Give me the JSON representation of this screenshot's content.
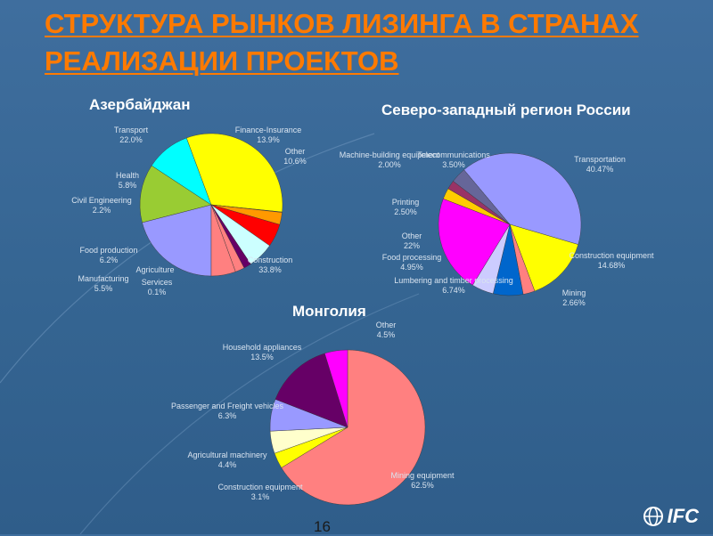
{
  "slide": {
    "title": "СТРУКТУРА РЫНКОВ ЛИЗИНГА В СТРАНАХ РЕАЛИЗАЦИИ ПРОЕКТОВ",
    "page_number": "16",
    "logo_text": "IFC"
  },
  "colors": {
    "title": "#ff7a00",
    "background": "#3a6a98",
    "label_text": "#d9e4f0"
  },
  "chart_data": [
    {
      "type": "pie",
      "title": "Азербайджан",
      "series": [
        {
          "label": "Transport",
          "value_text": "22.0%",
          "value": 22.0,
          "color": "#9999ff"
        },
        {
          "label": "Finance-Insurance",
          "value_text": "13.9%",
          "value": 13.9,
          "color": "#99cc33"
        },
        {
          "label": "Other",
          "value_text": "10.6%",
          "value": 10.6,
          "color": "#00ffff"
        },
        {
          "label": "Construction",
          "value_text": "33.8%",
          "value": 33.8,
          "color": "#ffff00"
        },
        {
          "label": "Services",
          "value_text": "0.1%",
          "value": 0.1,
          "color": "#cc99ff"
        },
        {
          "label": "Agriculture",
          "value_text": "",
          "value": 2.9,
          "color": "#ff9900"
        },
        {
          "label": "Manufacturing",
          "value_text": "5.5%",
          "value": 5.5,
          "color": "#ff0000"
        },
        {
          "label": "Food production",
          "value_text": "6.2%",
          "value": 6.2,
          "color": "#ccffff"
        },
        {
          "label": "",
          "value_text": "",
          "value": 1.8,
          "color": "#660066"
        },
        {
          "label": "Civil Engineering",
          "value_text": "2.2%",
          "value": 2.2,
          "color": "#ff8080"
        },
        {
          "label": "Health",
          "value_text": "5.8%",
          "value": 5.8,
          "color": "#ff8080"
        }
      ]
    },
    {
      "type": "pie",
      "title": "Северо-западный регион России",
      "series": [
        {
          "label": "Transportation",
          "value_text": "40.47%",
          "value": 40.47,
          "color": "#9999ff"
        },
        {
          "label": "Construction equipment",
          "value_text": "14.68%",
          "value": 14.68,
          "color": "#ffff00"
        },
        {
          "label": "Mining",
          "value_text": "2.66%",
          "value": 2.66,
          "color": "#ff8080"
        },
        {
          "label": "Lumbering and timber processing",
          "value_text": "6.74%",
          "value": 6.74,
          "color": "#0066cc"
        },
        {
          "label": "Food processing",
          "value_text": "4.95%",
          "value": 4.95,
          "color": "#ccccff"
        },
        {
          "label": "Other",
          "value_text": "22%",
          "value": 22.0,
          "color": "#ff00ff"
        },
        {
          "label": "Printing",
          "value_text": "2.50%",
          "value": 2.5,
          "color": "#ffcc00"
        },
        {
          "label": "Machine-building equipment",
          "value_text": "2.00%",
          "value": 2.0,
          "color": "#993366"
        },
        {
          "label": "Telecommunications",
          "value_text": "3.50%",
          "value": 3.5,
          "color": "#666699"
        }
      ]
    },
    {
      "type": "pie",
      "title": "Монголия",
      "series": [
        {
          "label": "Mining equipment",
          "value_text": "62.5%",
          "value": 62.5,
          "color": "#ff8080"
        },
        {
          "label": "Construction equipment",
          "value_text": "3.1%",
          "value": 3.1,
          "color": "#ffff00"
        },
        {
          "label": "Agricultural machinery",
          "value_text": "4.4%",
          "value": 4.4,
          "color": "#ffffcc"
        },
        {
          "label": "Passenger and Freight vehicles",
          "value_text": "6.3%",
          "value": 6.3,
          "color": "#9999ff"
        },
        {
          "label": "Household appliances",
          "value_text": "13.5%",
          "value": 13.5,
          "color": "#660066"
        },
        {
          "label": "Other",
          "value_text": "4.5%",
          "value": 4.5,
          "color": "#ff00ff"
        }
      ]
    }
  ]
}
